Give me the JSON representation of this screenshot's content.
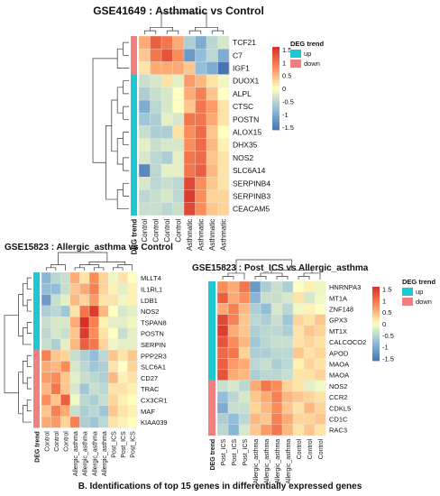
{
  "figure": {
    "caption": "B. Identifications of  top 15 genes in differentially expressed genes"
  },
  "chart_data": [
    {
      "type": "heatmap",
      "title": "GSE41649 : Asthmatic vs Control",
      "annotation_label": "DEG trend",
      "columns": [
        "Control",
        "Control",
        "Control",
        "Control",
        "Asthmatic",
        "Asthmatic",
        "Asthmatic",
        "Asthmatic"
      ],
      "rows": [
        "TCF21",
        "C7",
        "IGF1",
        "DUOX1",
        "ALPL",
        "CTSC",
        "POSTN",
        "ALOX15",
        "DHX35",
        "NOS2",
        "SLC6A14",
        "SERPINB4",
        "SERPINB3",
        "CEACAM5"
      ],
      "row_trend": [
        "down",
        "down",
        "down",
        "up",
        "up",
        "up",
        "up",
        "up",
        "up",
        "up",
        "up",
        "up",
        "up",
        "up"
      ],
      "values": [
        [
          0.6,
          1.2,
          1.0,
          0.6,
          -0.6,
          -1.0,
          -0.5,
          -0.3
        ],
        [
          0.4,
          1.0,
          1.3,
          0.8,
          -1.2,
          -0.8,
          -0.5,
          -1.0
        ],
        [
          0.2,
          0.6,
          0.6,
          0.6,
          0.4,
          -0.8,
          -1.0,
          -1.6
        ],
        [
          -0.4,
          -0.3,
          0.2,
          -0.2,
          0.7,
          0.5,
          0.2,
          -0.1
        ],
        [
          -0.6,
          -0.4,
          -0.3,
          0.0,
          0.6,
          0.9,
          0.4,
          0.0
        ],
        [
          -1.0,
          -0.5,
          -0.3,
          0.0,
          0.4,
          1.0,
          0.7,
          0.2
        ],
        [
          -0.7,
          -0.6,
          -0.2,
          -0.3,
          1.0,
          1.0,
          0.6,
          0.2
        ],
        [
          -0.4,
          -0.6,
          -0.6,
          0.2,
          0.8,
          1.1,
          0.4,
          0.0
        ],
        [
          -0.2,
          -0.4,
          -0.3,
          -0.3,
          0.8,
          1.1,
          0.5,
          0.1
        ],
        [
          -0.3,
          -0.5,
          -0.6,
          -0.2,
          1.0,
          1.1,
          0.4,
          0.2
        ],
        [
          -1.4,
          -0.5,
          -0.2,
          -0.2,
          1.0,
          1.2,
          0.5,
          0.2
        ],
        [
          -0.3,
          -0.5,
          -0.4,
          -0.5,
          1.4,
          0.8,
          0.4,
          0.2
        ],
        [
          -0.5,
          -0.4,
          -0.3,
          -0.5,
          1.5,
          0.8,
          0.3,
          0.3
        ],
        [
          -0.4,
          -0.4,
          -0.5,
          -0.4,
          1.4,
          0.8,
          0.4,
          0.3
        ]
      ],
      "color_scale": {
        "min": -1.6,
        "max": 1.6,
        "stops": [
          "#4575b4",
          "#91bfdb",
          "#ffffbf",
          "#fc8d59",
          "#d73027"
        ],
        "ticks": [
          "1.5",
          "1",
          "0.5",
          "0",
          "-0.5",
          "-1",
          "-1.5"
        ]
      },
      "legend": {
        "title": "DEG trend",
        "items": [
          {
            "label": "up",
            "color": "#1ec8d2"
          },
          {
            "label": "down",
            "color": "#f08080"
          }
        ]
      }
    },
    {
      "type": "heatmap",
      "title": "GSE15823 : Allergic_asthma vs Control",
      "annotation_label": "DEG trend",
      "columns": [
        "Control",
        "Control",
        "Control",
        "Allergic_asthma",
        "Allergic_asthma",
        "Allergic_asthma",
        "Allergic_asthma",
        "Post_ICS",
        "Post_ICS",
        "Post_ICS"
      ],
      "rows": [
        "MLLT4",
        "IL1RL1",
        "LDB1",
        "NOS2",
        "TSPAN8",
        "POSTN",
        "SERPIN",
        "PPP2R3",
        "SLC6A1",
        "CD27",
        "TRAC",
        "CX3CR1",
        "MAF",
        "KIAA039"
      ],
      "row_trend": [
        "up",
        "up",
        "up",
        "up",
        "up",
        "up",
        "up",
        "down",
        "down",
        "down",
        "down",
        "down",
        "down",
        "down"
      ],
      "values": [
        [
          -0.9,
          -0.5,
          -0.4,
          0.6,
          0.2,
          0.8,
          0.3,
          -0.1,
          0.2,
          0.0
        ],
        [
          -0.8,
          -0.8,
          -0.4,
          0.4,
          0.6,
          0.9,
          0.3,
          0.1,
          -0.2,
          0.1
        ],
        [
          -1.2,
          -0.4,
          -0.2,
          0.5,
          0.3,
          0.7,
          0.2,
          0.2,
          -0.1,
          0.1
        ],
        [
          -0.6,
          -0.5,
          -0.7,
          0.2,
          1.0,
          1.5,
          0.5,
          0.0,
          -0.3,
          -0.2
        ],
        [
          -0.4,
          -0.3,
          -0.3,
          0.6,
          1.6,
          0.9,
          0.1,
          -0.2,
          -0.2,
          -0.1
        ],
        [
          -0.5,
          -0.3,
          -0.4,
          0.4,
          1.5,
          0.8,
          0.2,
          0.0,
          -0.4,
          -0.2
        ],
        [
          -0.4,
          -0.6,
          -0.2,
          0.5,
          1.2,
          1.0,
          0.3,
          -0.1,
          -0.2,
          -0.2
        ],
        [
          0.9,
          0.4,
          0.3,
          -0.4,
          -0.6,
          -0.8,
          -0.5,
          0.4,
          0.2,
          0.4
        ],
        [
          0.6,
          0.5,
          0.8,
          -0.3,
          -0.5,
          -0.7,
          -0.6,
          0.2,
          0.0,
          0.3
        ],
        [
          0.7,
          0.8,
          0.4,
          -0.2,
          -0.4,
          -0.5,
          -0.6,
          0.5,
          0.1,
          0.2
        ],
        [
          0.5,
          1.0,
          0.4,
          -0.3,
          -0.7,
          -0.4,
          -0.5,
          0.2,
          0.2,
          0.1
        ],
        [
          0.8,
          0.4,
          1.2,
          -0.1,
          -0.5,
          -0.6,
          -0.4,
          0.3,
          0.1,
          0.0
        ],
        [
          0.4,
          0.9,
          0.6,
          -0.4,
          -0.6,
          -0.5,
          -0.7,
          0.4,
          0.2,
          0.1
        ],
        [
          0.6,
          0.7,
          0.3,
          0.9,
          -0.6,
          -0.7,
          -0.5,
          0.2,
          0.1,
          0.0
        ]
      ],
      "color_scale": {
        "min": -1.6,
        "max": 1.6,
        "stops": [
          "#4575b4",
          "#91bfdb",
          "#ffffbf",
          "#fc8d59",
          "#d73027"
        ]
      }
    },
    {
      "type": "heatmap",
      "title": "GSE15823 : Post_ICS vs Allergic_asthma",
      "annotation_label": "DEG trend",
      "columns": [
        "Post_ICS",
        "Post_ICS",
        "Post_ICS",
        "Allergic_asthma",
        "Allergic_asthma",
        "Allergic_asthma",
        "Allergic_asthma",
        "Control",
        "Control",
        "Control"
      ],
      "rows": [
        "HNRNPA3",
        "MT1A",
        "ZNF148",
        "GPX3",
        "MT1X",
        "CALCOCO2",
        "APOD",
        "MAOA",
        "MAOA",
        "NOS2",
        "CCR2",
        "CDKL5",
        "CD1C",
        "RAC3"
      ],
      "row_trend": [
        "up",
        "up",
        "up",
        "up",
        "up",
        "up",
        "up",
        "up",
        "up",
        "down",
        "down",
        "down",
        "down",
        "down"
      ],
      "values": [
        [
          0.8,
          0.6,
          1.0,
          -1.2,
          -0.6,
          -0.4,
          -0.6,
          0.0,
          0.1,
          -0.1
        ],
        [
          1.2,
          0.6,
          0.8,
          -0.9,
          -0.4,
          -0.4,
          -0.3,
          0.2,
          -0.3,
          -0.1
        ],
        [
          0.6,
          0.9,
          0.5,
          -0.6,
          -0.8,
          -0.3,
          -0.5,
          -0.1,
          0.1,
          0.0
        ],
        [
          1.4,
          0.9,
          0.4,
          -0.5,
          -0.6,
          -0.4,
          -0.7,
          0.3,
          0.2,
          0.4
        ],
        [
          1.5,
          0.6,
          0.4,
          -0.6,
          -0.5,
          -0.5,
          -0.6,
          0.2,
          0.4,
          0.3
        ],
        [
          1.3,
          0.8,
          0.5,
          -0.7,
          -0.5,
          -0.4,
          -0.4,
          0.2,
          0.3,
          0.2
        ],
        [
          1.1,
          1.0,
          0.3,
          -0.6,
          -0.6,
          -0.5,
          -0.5,
          0.4,
          0.2,
          0.3
        ],
        [
          1.2,
          0.7,
          0.6,
          -0.5,
          -0.4,
          -0.6,
          -0.5,
          0.1,
          0.3,
          0.2
        ],
        [
          1.3,
          0.6,
          0.5,
          -0.6,
          -0.5,
          -0.5,
          -0.4,
          0.2,
          0.2,
          0.3
        ],
        [
          -0.4,
          -0.3,
          -0.5,
          0.6,
          1.0,
          0.8,
          0.3,
          0.2,
          -0.2,
          -0.1
        ],
        [
          -0.8,
          -0.5,
          -0.3,
          0.4,
          0.6,
          0.9,
          0.5,
          0.4,
          0.3,
          0.2
        ],
        [
          -1.0,
          -0.4,
          -0.4,
          0.3,
          0.5,
          0.8,
          0.4,
          0.2,
          0.5,
          0.3
        ],
        [
          -0.6,
          -0.8,
          -0.5,
          0.5,
          0.4,
          0.9,
          0.6,
          0.3,
          0.3,
          0.4
        ],
        [
          -0.5,
          -0.9,
          -0.3,
          0.4,
          0.7,
          1.0,
          0.5,
          0.2,
          0.4,
          0.2
        ]
      ],
      "color_scale": {
        "min": -1.6,
        "max": 1.6,
        "stops": [
          "#4575b4",
          "#91bfdb",
          "#ffffbf",
          "#fc8d59",
          "#d73027"
        ],
        "ticks": [
          "1.5",
          "1",
          "0.5",
          "0",
          "-0.5",
          "-1",
          "-1.5"
        ]
      },
      "legend": {
        "title": "DEG trend",
        "items": [
          {
            "label": "up",
            "color": "#1ec8d2"
          },
          {
            "label": "down",
            "color": "#f08080"
          }
        ]
      }
    }
  ]
}
